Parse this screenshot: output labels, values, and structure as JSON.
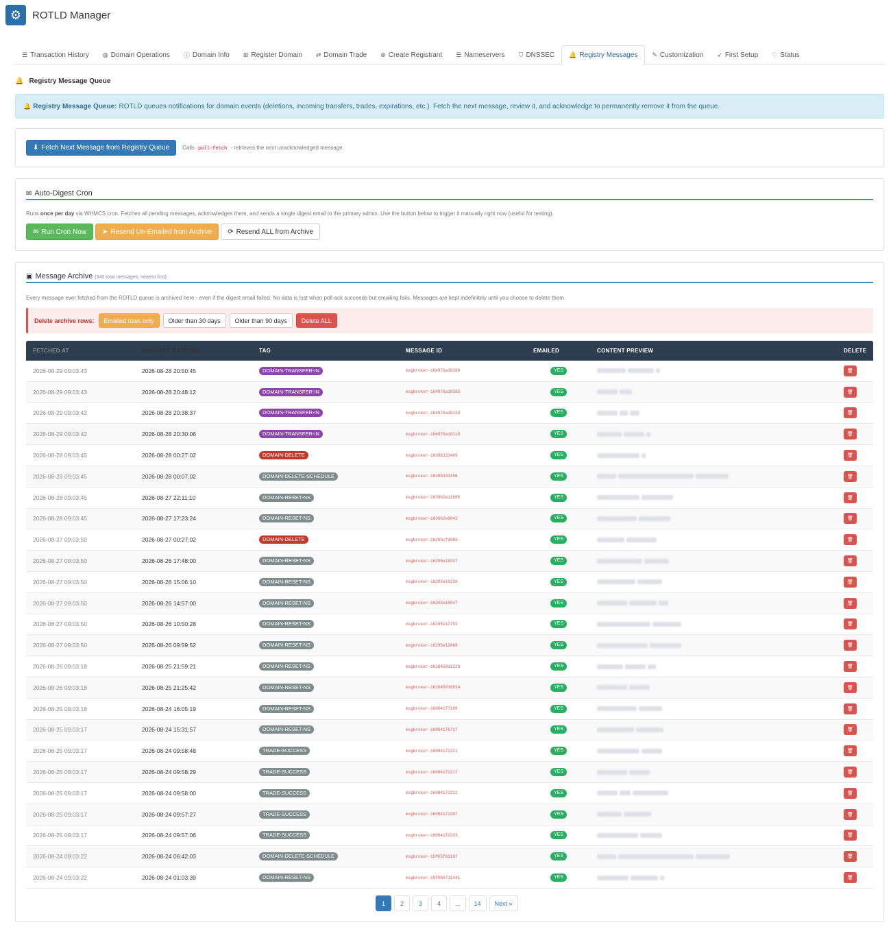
{
  "app": {
    "title": "ROTLD Manager",
    "logo_icon": "gear-icon"
  },
  "tabs": [
    {
      "label": "Transaction History",
      "icon": "list-icon",
      "glyph": "☰",
      "active": false
    },
    {
      "label": "Domain Operations",
      "icon": "globe-icon",
      "glyph": "◍",
      "active": false
    },
    {
      "label": "Domain Info",
      "icon": "info-icon",
      "glyph": "ⓘ",
      "active": false
    },
    {
      "label": "Register Domain",
      "icon": "plus-square-icon",
      "glyph": "⊞",
      "active": false
    },
    {
      "label": "Domain Trade",
      "icon": "exchange-icon",
      "glyph": "⇄",
      "active": false
    },
    {
      "label": "Create Registrant",
      "icon": "plus-circle-icon",
      "glyph": "⊕",
      "active": false
    },
    {
      "label": "Nameservers",
      "icon": "server-icon",
      "glyph": "☰",
      "active": false
    },
    {
      "label": "DNSSEC",
      "icon": "shield-icon",
      "glyph": "⛉",
      "active": false
    },
    {
      "label": "Registry Messages",
      "icon": "bell-icon",
      "glyph": "🔔",
      "active": true
    },
    {
      "label": "Customization",
      "icon": "brush-icon",
      "glyph": "✎",
      "active": false
    },
    {
      "label": "First Setup",
      "icon": "rocket-icon",
      "glyph": "➶",
      "active": false
    },
    {
      "label": "Status",
      "icon": "heartbeat-icon",
      "glyph": "♡",
      "active": false
    }
  ],
  "section_title": "Registry Message Queue",
  "alert": {
    "title": "Registry Message Queue:",
    "text": "ROTLD queues notifications for domain events (deletions, incoming transfers, trades, expirations, etc.). Fetch the next message, review it, and acknowledge to permanently remove it from the queue."
  },
  "fetch": {
    "button": "Fetch Next Message from Registry Queue",
    "hint_prefix": "Calls",
    "hint_code": "poll-fetch",
    "hint_suffix": "- retrieves the next unacknowledged message."
  },
  "cron": {
    "title": "Auto-Digest Cron",
    "desc_prefix": "Runs",
    "desc_bold": "once per day",
    "desc_suffix": "via WHMCS cron. Fetches all pending messages, acknowledges them, and sends a single digest email to the primary admin. Use the button below to trigger it manually right now (useful for testing).",
    "run_button": "Run Cron Now",
    "resend_unemailed_button": "Resend Un-Emailed from Archive",
    "resend_all_button": "Resend ALL from Archive"
  },
  "archive": {
    "title": "Message Archive",
    "subtitle": "(340 total messages, newest first)",
    "desc": "Every message ever fetched from the ROTLD queue is archived here - even if the digest email failed. No data is lost when poll-ack succeeds but emailing fails. Messages are kept indefinitely until you choose to delete them.",
    "delete_label": "Delete archive rows:",
    "delete_emailed": "Emailed rows only",
    "delete_30": "Older than 30 days",
    "delete_90": "Older than 90 days",
    "delete_all": "Delete ALL",
    "columns": [
      "FETCHED AT",
      "MESSAGE DATETIME",
      "TAG",
      "MESSAGE ID",
      "EMAILED",
      "CONTENT PREVIEW",
      "DELETE"
    ],
    "rows": [
      {
        "fetched": "2026-08-29 09:03:43",
        "datetime": "2026-08-28 20:50:45",
        "tag": "DOMAIN-TRANSFER-IN",
        "color": "#8e44ad",
        "msgid": "msgbroker-164976a10390",
        "emailed": "YES"
      },
      {
        "fetched": "2026-08-29 09:03:43",
        "datetime": "2026-08-28 20:48:12",
        "tag": "DOMAIN-TRANSFER-IN",
        "color": "#8e44ad",
        "msgid": "msgbroker-164976a10385",
        "emailed": "YES"
      },
      {
        "fetched": "2026-08-29 09:03:42",
        "datetime": "2026-08-28 20:38:37",
        "tag": "DOMAIN-TRANSFER-IN",
        "color": "#8e44ad",
        "msgid": "msgbroker-164976a10139",
        "emailed": "YES"
      },
      {
        "fetched": "2026-08-29 09:03:42",
        "datetime": "2026-08-28 20:30:06",
        "tag": "DOMAIN-TRANSFER-IN",
        "color": "#8e44ad",
        "msgid": "msgbroker-164976a10119",
        "emailed": "YES"
      },
      {
        "fetched": "2026-08-28 09:03:45",
        "datetime": "2026-08-28 00:27:02",
        "tag": "DOMAIN-DELETE",
        "color": "#c0392b",
        "msgid": "msgbroker-16396333469",
        "emailed": "YES"
      },
      {
        "fetched": "2026-08-28 09:03:45",
        "datetime": "2026-08-28 00:07:02",
        "tag": "DOMAIN-DELETE-SCHEDULE",
        "color": "#7f8c8d",
        "msgid": "msgbroker-16396333156",
        "emailed": "YES"
      },
      {
        "fetched": "2026-08-28 09:03:45",
        "datetime": "2026-08-27 22:11:10",
        "tag": "DOMAIN-RESET-NS",
        "color": "#7f8c8d",
        "msgid": "msgbroker-163962e11686",
        "emailed": "YES"
      },
      {
        "fetched": "2026-08-28 09:03:45",
        "datetime": "2026-08-27 17:23:24",
        "tag": "DOMAIN-RESET-NS",
        "color": "#7f8c8d",
        "msgid": "msgbroker-163962e8043",
        "emailed": "YES"
      },
      {
        "fetched": "2026-08-27 09:03:50",
        "datetime": "2026-08-27 00:27:02",
        "tag": "DOMAIN-DELETE",
        "color": "#c0392b",
        "msgid": "msgbroker-16295cf3085",
        "emailed": "YES"
      },
      {
        "fetched": "2026-08-27 09:03:50",
        "datetime": "2026-08-26 17:48:00",
        "tag": "DOMAIN-RESET-NS",
        "color": "#7f8c8d",
        "msgid": "msgbroker-16295e18337",
        "emailed": "YES"
      },
      {
        "fetched": "2026-08-27 09:03:50",
        "datetime": "2026-08-26 15:06:10",
        "tag": "DOMAIN-RESET-NS",
        "color": "#7f8c8d",
        "msgid": "msgbroker-16295e16236",
        "emailed": "YES"
      },
      {
        "fetched": "2026-08-27 09:03:50",
        "datetime": "2026-08-26 14:57:00",
        "tag": "DOMAIN-RESET-NS",
        "color": "#7f8c8d",
        "msgid": "msgbroker-16295e16047",
        "emailed": "YES"
      },
      {
        "fetched": "2026-08-27 09:03:50",
        "datetime": "2026-08-26 10:50:28",
        "tag": "DOMAIN-RESET-NS",
        "color": "#7f8c8d",
        "msgid": "msgbroker-16295e12793",
        "emailed": "YES"
      },
      {
        "fetched": "2026-08-27 09:03:50",
        "datetime": "2026-08-26 09:59:52",
        "tag": "DOMAIN-RESET-NS",
        "color": "#7f8c8d",
        "msgid": "msgbroker-16295e12068",
        "emailed": "YES"
      },
      {
        "fetched": "2026-08-26 09:03:18",
        "datetime": "2026-08-25 21:59:21",
        "tag": "DOMAIN-RESET-NS",
        "color": "#7f8c8d",
        "msgid": "msgbroker-161845011229",
        "emailed": "YES"
      },
      {
        "fetched": "2026-08-26 09:03:18",
        "datetime": "2026-08-25 21:25:42",
        "tag": "DOMAIN-RESET-NS",
        "color": "#7f8c8d",
        "msgid": "msgbroker-161845010934",
        "emailed": "YES"
      },
      {
        "fetched": "2026-08-25 09:03:18",
        "datetime": "2026-08-24 16:05:19",
        "tag": "DOMAIN-RESET-NS",
        "color": "#7f8c8d",
        "msgid": "msgbroker-16084177189",
        "emailed": "YES"
      },
      {
        "fetched": "2026-08-25 09:03:17",
        "datetime": "2026-08-24 15:31:57",
        "tag": "DOMAIN-RESET-NS",
        "color": "#7f8c8d",
        "msgid": "msgbroker-16084176717",
        "emailed": "YES"
      },
      {
        "fetched": "2026-08-25 09:03:17",
        "datetime": "2026-08-24 09:58:48",
        "tag": "TRADE-SUCCESS",
        "color": "#7f8c8d",
        "msgid": "msgbroker-16084172221",
        "emailed": "YES"
      },
      {
        "fetched": "2026-08-25 09:03:17",
        "datetime": "2026-08-24 09:58:29",
        "tag": "TRADE-SUCCESS",
        "color": "#7f8c8d",
        "msgid": "msgbroker-16084172217",
        "emailed": "YES"
      },
      {
        "fetched": "2026-08-25 09:03:17",
        "datetime": "2026-08-24 09:58:00",
        "tag": "TRADE-SUCCESS",
        "color": "#7f8c8d",
        "msgid": "msgbroker-16084172211",
        "emailed": "YES"
      },
      {
        "fetched": "2026-08-25 09:03:17",
        "datetime": "2026-08-24 09:57:27",
        "tag": "TRADE-SUCCESS",
        "color": "#7f8c8d",
        "msgid": "msgbroker-16084172207",
        "emailed": "YES"
      },
      {
        "fetched": "2026-08-25 09:03:17",
        "datetime": "2026-08-24 09:57:06",
        "tag": "TRADE-SUCCESS",
        "color": "#7f8c8d",
        "msgid": "msgbroker-16084172203",
        "emailed": "YES"
      },
      {
        "fetched": "2026-08-24 09:03:22",
        "datetime": "2026-08-24 06:42:03",
        "tag": "DOMAIN-DELETE-SCHEDULE",
        "color": "#7f8c8d",
        "msgid": "msgbroker-15f85f61107",
        "emailed": "YES"
      },
      {
        "fetched": "2026-08-24 09:03:22",
        "datetime": "2026-08-24 01:03:39",
        "tag": "DOMAIN-RESET-NS",
        "color": "#7f8c8d",
        "msgid": "msgbroker-15f860711441",
        "emailed": "YES"
      }
    ],
    "delete_icon": "trash-icon"
  },
  "pagination": {
    "pages": [
      "1",
      "2",
      "3",
      "4",
      "...",
      "14"
    ],
    "active": "1",
    "next": "Next »"
  }
}
